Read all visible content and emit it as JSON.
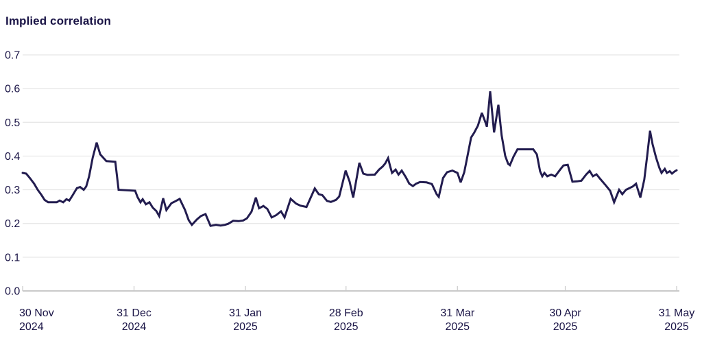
{
  "page": {
    "title": "Implied correlation"
  },
  "colors": {
    "background": "#ffffff",
    "text": "#1a1446",
    "line": "#221c4f",
    "gridline": "#e5e5e5",
    "axis_line": "#c9c9c9",
    "tick": "#c9c9c9"
  },
  "chart_data": {
    "type": "line",
    "title": "Implied correlation",
    "subtitle": "",
    "legend": "none",
    "grid": "horizontal",
    "y_axis": {
      "min": 0.0,
      "max": 0.7,
      "step": 0.1,
      "tick_labels": [
        "0.0",
        "0.1",
        "0.2",
        "0.3",
        "0.4",
        "0.5",
        "0.6",
        "0.7"
      ]
    },
    "x_axis": {
      "unit": "date",
      "range_days": [
        0,
        182
      ],
      "ticks": [
        {
          "day": 0,
          "line1": "30 Nov",
          "line2": "2024"
        },
        {
          "day": 31,
          "line1": "31 Dec",
          "line2": "2024"
        },
        {
          "day": 62,
          "line1": "31 Jan",
          "line2": "2025"
        },
        {
          "day": 90,
          "line1": "28 Feb",
          "line2": "2025"
        },
        {
          "day": 121,
          "line1": "31 Mar",
          "line2": "2025"
        },
        {
          "day": 151,
          "line1": "30 Apr",
          "line2": "2025"
        },
        {
          "day": 182,
          "line1": "31 May",
          "line2": "2025"
        }
      ]
    },
    "series": [
      {
        "name": "Implied correlation",
        "color": "#221c4f",
        "points": [
          [
            0,
            0.35
          ],
          [
            1,
            0.348
          ],
          [
            2,
            0.335
          ],
          [
            3.2,
            0.318
          ],
          [
            4.2,
            0.3
          ],
          [
            5.2,
            0.285
          ],
          [
            6.1,
            0.27
          ],
          [
            7.1,
            0.263
          ],
          [
            9.5,
            0.263
          ],
          [
            10.3,
            0.268
          ],
          [
            11.3,
            0.263
          ],
          [
            12.2,
            0.272
          ],
          [
            13,
            0.268
          ],
          [
            14.1,
            0.287
          ],
          [
            15.1,
            0.305
          ],
          [
            16,
            0.308
          ],
          [
            17,
            0.3
          ],
          [
            17.7,
            0.31
          ],
          [
            18.5,
            0.34
          ],
          [
            19.5,
            0.395
          ],
          [
            20.6,
            0.44
          ],
          [
            21.6,
            0.405
          ],
          [
            23.3,
            0.385
          ],
          [
            25.8,
            0.383
          ],
          [
            26.7,
            0.3
          ],
          [
            31.3,
            0.297
          ],
          [
            32,
            0.278
          ],
          [
            32.8,
            0.263
          ],
          [
            33.4,
            0.272
          ],
          [
            34.3,
            0.257
          ],
          [
            35.3,
            0.263
          ],
          [
            36.2,
            0.247
          ],
          [
            37.2,
            0.237
          ],
          [
            38,
            0.222
          ],
          [
            39.1,
            0.275
          ],
          [
            40,
            0.24
          ],
          [
            41.4,
            0.26
          ],
          [
            42.5,
            0.266
          ],
          [
            43.7,
            0.273
          ],
          [
            45.2,
            0.24
          ],
          [
            46.2,
            0.21
          ],
          [
            47.1,
            0.196
          ],
          [
            48.5,
            0.212
          ],
          [
            49.6,
            0.222
          ],
          [
            50.9,
            0.228
          ],
          [
            52.3,
            0.193
          ],
          [
            53.8,
            0.196
          ],
          [
            55.1,
            0.194
          ],
          [
            56.3,
            0.196
          ],
          [
            57.2,
            0.199
          ],
          [
            58.6,
            0.208
          ],
          [
            60.1,
            0.207
          ],
          [
            61.4,
            0.209
          ],
          [
            62.4,
            0.215
          ],
          [
            63.7,
            0.235
          ],
          [
            64.9,
            0.277
          ],
          [
            65.8,
            0.245
          ],
          [
            67,
            0.252
          ],
          [
            68.1,
            0.243
          ],
          [
            69.3,
            0.218
          ],
          [
            70.6,
            0.225
          ],
          [
            71.9,
            0.236
          ],
          [
            72.9,
            0.218
          ],
          [
            74.6,
            0.273
          ],
          [
            76.1,
            0.259
          ],
          [
            77.3,
            0.253
          ],
          [
            79,
            0.249
          ],
          [
            81.3,
            0.304
          ],
          [
            82.4,
            0.287
          ],
          [
            83.4,
            0.284
          ],
          [
            84.7,
            0.267
          ],
          [
            85.8,
            0.264
          ],
          [
            87.2,
            0.27
          ],
          [
            88.1,
            0.28
          ],
          [
            89.9,
            0.357
          ],
          [
            91,
            0.324
          ],
          [
            92,
            0.277
          ],
          [
            93.7,
            0.38
          ],
          [
            94.8,
            0.348
          ],
          [
            96,
            0.344
          ],
          [
            98,
            0.345
          ],
          [
            99.2,
            0.36
          ],
          [
            100.2,
            0.369
          ],
          [
            100.9,
            0.378
          ],
          [
            101.7,
            0.394
          ],
          [
            102.3,
            0.369
          ],
          [
            102.8,
            0.35
          ],
          [
            103.8,
            0.36
          ],
          [
            104.6,
            0.345
          ],
          [
            105.5,
            0.357
          ],
          [
            106.6,
            0.338
          ],
          [
            107.6,
            0.318
          ],
          [
            108.6,
            0.311
          ],
          [
            109.5,
            0.318
          ],
          [
            110.6,
            0.323
          ],
          [
            112.4,
            0.322
          ],
          [
            113.9,
            0.317
          ],
          [
            115.2,
            0.287
          ],
          [
            115.8,
            0.279
          ],
          [
            117,
            0.335
          ],
          [
            118.1,
            0.352
          ],
          [
            119.6,
            0.357
          ],
          [
            121,
            0.35
          ],
          [
            121.9,
            0.322
          ],
          [
            122.9,
            0.352
          ],
          [
            123.8,
            0.4
          ],
          [
            124.8,
            0.455
          ],
          [
            125.7,
            0.47
          ],
          [
            126.7,
            0.49
          ],
          [
            127.8,
            0.528
          ],
          [
            128.8,
            0.5
          ],
          [
            129.2,
            0.487
          ],
          [
            130.1,
            0.592
          ],
          [
            131.2,
            0.47
          ],
          [
            132.4,
            0.552
          ],
          [
            133.3,
            0.462
          ],
          [
            134.3,
            0.4
          ],
          [
            135.1,
            0.377
          ],
          [
            135.6,
            0.373
          ],
          [
            136.6,
            0.398
          ],
          [
            137.7,
            0.42
          ],
          [
            139.6,
            0.42
          ],
          [
            142.1,
            0.42
          ],
          [
            143.1,
            0.405
          ],
          [
            144,
            0.355
          ],
          [
            144.6,
            0.34
          ],
          [
            145.2,
            0.35
          ],
          [
            146,
            0.34
          ],
          [
            147.1,
            0.345
          ],
          [
            148.2,
            0.34
          ],
          [
            149.6,
            0.36
          ],
          [
            150.5,
            0.372
          ],
          [
            151.7,
            0.374
          ],
          [
            153,
            0.324
          ],
          [
            154.3,
            0.325
          ],
          [
            155.5,
            0.327
          ],
          [
            156.8,
            0.345
          ],
          [
            157.8,
            0.356
          ],
          [
            158.7,
            0.34
          ],
          [
            159.7,
            0.346
          ],
          [
            160.6,
            0.334
          ],
          [
            162.2,
            0.314
          ],
          [
            163.5,
            0.297
          ],
          [
            164.6,
            0.263
          ],
          [
            166,
            0.3
          ],
          [
            166.9,
            0.287
          ],
          [
            167.9,
            0.3
          ],
          [
            169.8,
            0.31
          ],
          [
            170.7,
            0.318
          ],
          [
            171.9,
            0.277
          ],
          [
            173,
            0.33
          ],
          [
            173.8,
            0.4
          ],
          [
            174.6,
            0.475
          ],
          [
            175.3,
            0.435
          ],
          [
            176.3,
            0.395
          ],
          [
            177.2,
            0.365
          ],
          [
            177.8,
            0.35
          ],
          [
            178.7,
            0.362
          ],
          [
            179.3,
            0.35
          ],
          [
            180.1,
            0.355
          ],
          [
            180.7,
            0.348
          ],
          [
            181.4,
            0.354
          ],
          [
            182,
            0.358
          ]
        ]
      }
    ]
  }
}
